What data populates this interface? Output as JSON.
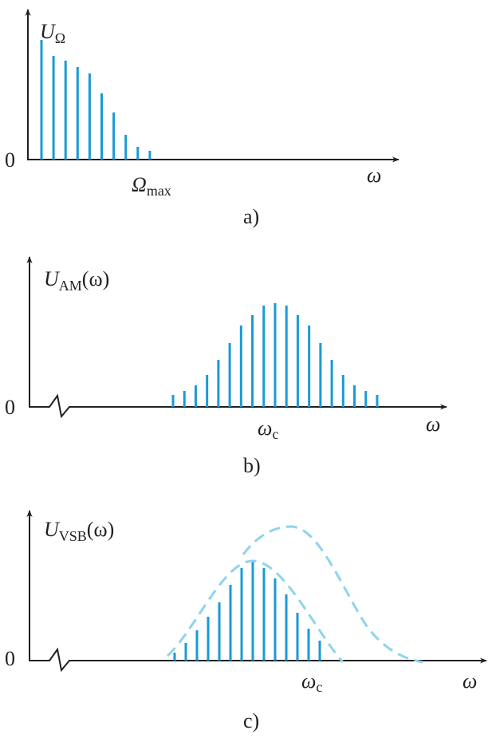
{
  "panels": [
    {
      "y_label": {
        "main": "U",
        "sub": "Ω"
      },
      "zero": "0",
      "marker": {
        "main": "Ω",
        "sub": "max"
      },
      "x_label": "ω",
      "caption": "a)"
    },
    {
      "y_label": {
        "main": "U",
        "sub": "AM",
        "suffix": "(ω)"
      },
      "zero": "0",
      "marker": {
        "main": "ω",
        "sub": "c"
      },
      "x_label": "ω",
      "caption": "b)"
    },
    {
      "y_label": {
        "main": "U",
        "sub": "VSB",
        "suffix": "(ω)"
      },
      "zero": "0",
      "marker": {
        "main": "ω",
        "sub": "c"
      },
      "x_label": "ω",
      "caption": "c)"
    }
  ]
}
